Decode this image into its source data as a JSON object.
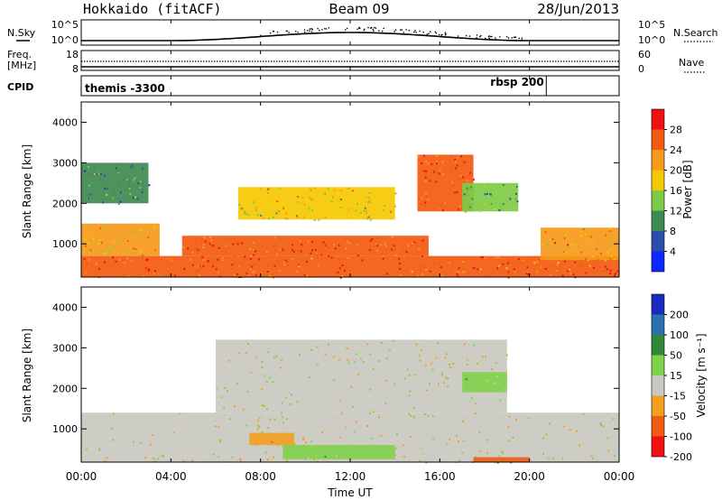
{
  "header": {
    "station": "Hokkaido (fitACF)",
    "beam": "Beam 09",
    "date": "28/Jun/2013"
  },
  "noise_panel": {
    "left_label": "N.Sky",
    "right_label": "N.Search",
    "left_ticks": [
      "10^5",
      "10^0"
    ],
    "right_ticks": [
      "10^5",
      "10^0"
    ]
  },
  "freq_panel": {
    "left_label_1": "Freq.",
    "left_label_2": "[MHz]",
    "right_label": "Nave",
    "left_ticks": [
      "18",
      "8"
    ],
    "right_ticks": [
      "60",
      "0"
    ]
  },
  "cpid_panel": {
    "label": "CPID",
    "programs": [
      {
        "name": "themis -3300",
        "start_hour": 0
      },
      {
        "name": "rbsp 200",
        "start_hour": 20.75
      }
    ]
  },
  "power_panel": {
    "ylabel": "Slant Range [km]",
    "yticks": [
      "1000",
      "2000",
      "3000",
      "4000"
    ],
    "colorbar_label": "Power [dB]",
    "colorbar_ticks": [
      "4",
      "8",
      "12",
      "16",
      "20",
      "24",
      "28"
    ],
    "colors": [
      "#0a28ff",
      "#2a4faa",
      "#3f8a50",
      "#7ecb45",
      "#f5c800",
      "#f59a1a",
      "#f25a10",
      "#f01010"
    ]
  },
  "velocity_panel": {
    "ylabel": "Slant Range [km]",
    "yticks": [
      "1000",
      "2000",
      "3000",
      "4000"
    ],
    "colorbar_label": "Velocity [m s⁻¹]",
    "colorbar_ticks": [
      "200",
      "100",
      "50",
      "15",
      "-15",
      "-50",
      "-100",
      "-200"
    ],
    "colors": [
      "#1a2cc0",
      "#2a6fb0",
      "#2e8a3a",
      "#7fd24a",
      "#c8c8c0",
      "#f2a020",
      "#f25a10",
      "#f01010"
    ]
  },
  "x_axis": {
    "ticks": [
      "00:00",
      "04:00",
      "08:00",
      "12:00",
      "16:00",
      "20:00",
      "00:00"
    ],
    "label": "Time UT"
  },
  "chart_data": {
    "type": "heatmap",
    "x_range_hours": [
      0,
      24
    ],
    "y_range_km": [
      180,
      4500
    ],
    "power_regions": [
      {
        "t0": 0.0,
        "t1": 24.0,
        "r0": 180,
        "r1": 700,
        "power_db": 26
      },
      {
        "t0": 0.0,
        "t1": 3.5,
        "r0": 700,
        "r1": 1500,
        "power_db": 20
      },
      {
        "t0": 4.5,
        "t1": 15.5,
        "r0": 700,
        "r1": 1200,
        "power_db": 27
      },
      {
        "t0": 7.0,
        "t1": 14.0,
        "r0": 1600,
        "r1": 2400,
        "power_db": 18
      },
      {
        "t0": 15.0,
        "t1": 17.5,
        "r0": 1800,
        "r1": 3200,
        "power_db": 27
      },
      {
        "t0": 17.0,
        "t1": 19.5,
        "r0": 1800,
        "r1": 2500,
        "power_db": 12
      },
      {
        "t0": 20.5,
        "t1": 24.0,
        "r0": 600,
        "r1": 1400,
        "power_db": 22
      },
      {
        "t0": 0.0,
        "t1": 3.0,
        "r0": 2000,
        "r1": 3000,
        "power_db": 10
      }
    ],
    "velocity_regions": [
      {
        "t0": 0.0,
        "t1": 24.0,
        "r0": 180,
        "r1": 1400,
        "velocity_ms": 0
      },
      {
        "t0": 6.0,
        "t1": 19.0,
        "r0": 1400,
        "r1": 3200,
        "velocity_ms": 0
      },
      {
        "t0": 7.5,
        "t1": 9.5,
        "r0": 600,
        "r1": 900,
        "velocity_ms": -40
      },
      {
        "t0": 17.0,
        "t1": 19.0,
        "r0": 1900,
        "r1": 2400,
        "velocity_ms": 30
      },
      {
        "t0": 9.0,
        "t1": 14.0,
        "r0": 250,
        "r1": 600,
        "velocity_ms": 30
      },
      {
        "t0": 17.5,
        "t1": 20.0,
        "r0": 180,
        "r1": 300,
        "velocity_ms": -60
      }
    ]
  }
}
